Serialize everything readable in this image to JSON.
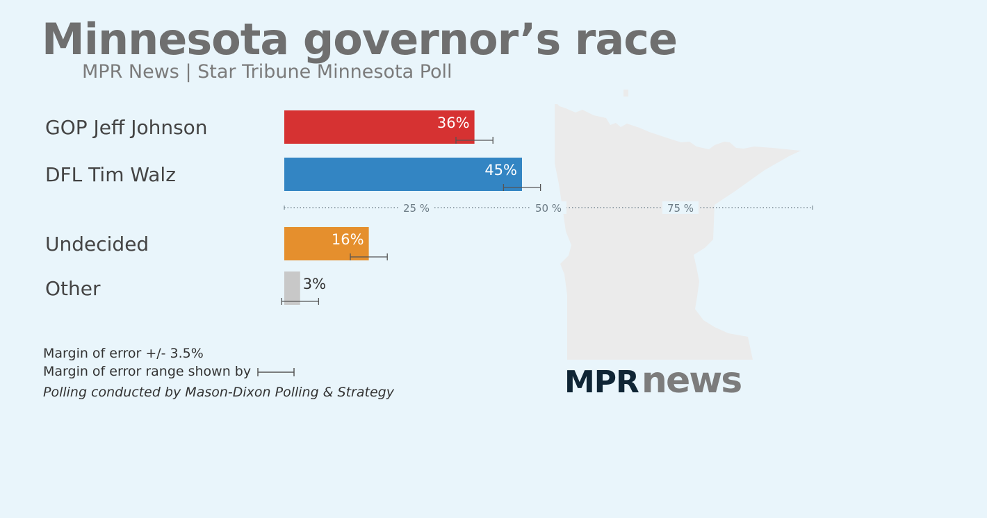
{
  "header": {
    "title": "Minnesota governor’s race",
    "subtitle": "MPR News | Star Tribune Minnesota Poll"
  },
  "chart_data": {
    "type": "bar",
    "orientation": "horizontal",
    "categories": [
      "GOP Jeff Johnson",
      "DFL Tim Walz",
      "Undecided",
      "Other"
    ],
    "values": [
      36,
      45,
      16,
      3
    ],
    "value_labels": [
      "36%",
      "45%",
      "16%",
      "3%"
    ],
    "colors": [
      "#d63232",
      "#3385c3",
      "#e58f2d",
      "#c8c8c8"
    ],
    "error_margin": 3.5,
    "axis": {
      "ticks": [
        25,
        50,
        75
      ],
      "tick_labels": [
        "25 %",
        "50 %",
        "75 %"
      ],
      "xlim": [
        0,
        100
      ],
      "style": "dotted"
    },
    "grid": false,
    "legend": "none"
  },
  "notes": {
    "moe": "Margin of error +/- 3.5%",
    "moe_range": "Margin of error range shown by",
    "credit": "Polling conducted by Mason-Dixon Polling & Strategy"
  },
  "logo": {
    "mpr": "MPR",
    "news": "news"
  },
  "map": {
    "icon": "minnesota-state-silhouette"
  }
}
